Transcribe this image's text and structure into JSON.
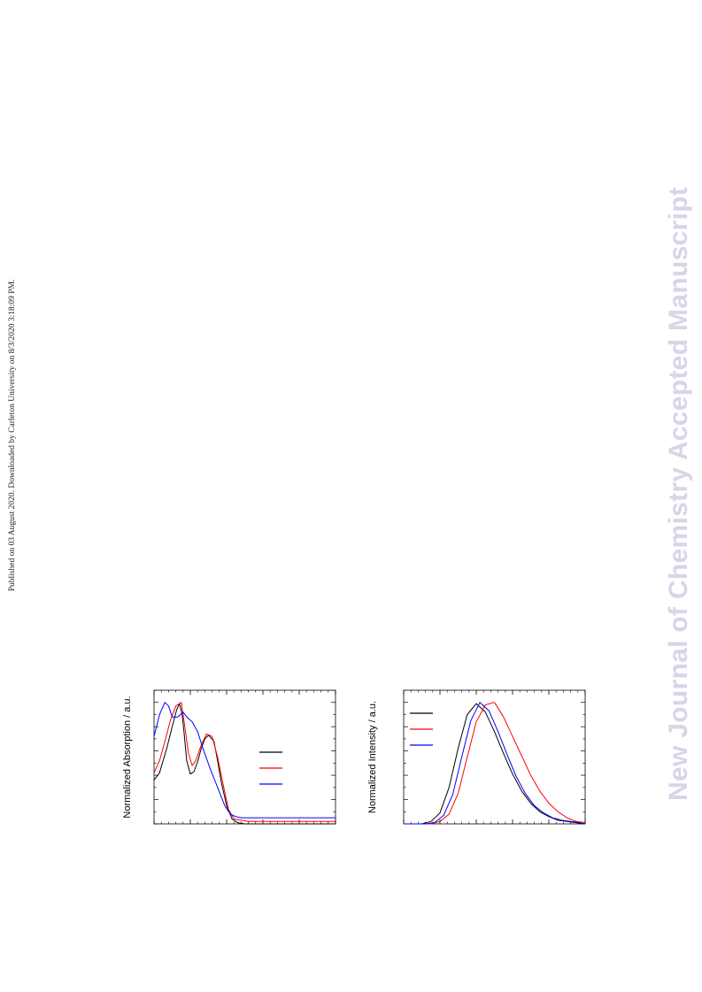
{
  "page": {
    "publication_note": "Published on 03 August 2020. Downloaded by Carleton University on 8/3/2020 3:18:09 PM.",
    "watermark": "New Journal of Chemistry Accepted Manuscript"
  },
  "chart_data": [
    {
      "type": "line",
      "title": "",
      "xlabel": "",
      "ylabel": "Normalized Absorption / a.u.",
      "xlim": [
        0,
        1
      ],
      "ylim": [
        0,
        1.1
      ],
      "grid": false,
      "legend": {
        "position": "right-center",
        "entries": [
          "",
          "",
          ""
        ]
      },
      "series": [
        {
          "color": "#000000",
          "x": [
            0,
            0.03,
            0.07,
            0.1,
            0.125,
            0.14,
            0.155,
            0.165,
            0.18,
            0.2,
            0.22,
            0.24,
            0.26,
            0.28,
            0.3,
            0.33,
            0.35,
            0.37,
            0.4,
            0.43,
            0.46,
            0.5,
            0.55,
            0.6,
            0.7,
            0.8,
            0.9,
            1.0
          ],
          "y": [
            0.36,
            0.42,
            0.62,
            0.8,
            0.94,
            0.99,
            0.9,
            0.76,
            0.52,
            0.41,
            0.43,
            0.51,
            0.62,
            0.7,
            0.73,
            0.68,
            0.52,
            0.35,
            0.15,
            0.04,
            0.01,
            0.0,
            0.0,
            0.0,
            0.0,
            0.0,
            0.0,
            0.0
          ]
        },
        {
          "color": "#ff0000",
          "x": [
            0,
            0.03,
            0.06,
            0.09,
            0.12,
            0.15,
            0.17,
            0.19,
            0.21,
            0.23,
            0.26,
            0.29,
            0.32,
            0.35,
            0.38,
            0.41,
            0.44,
            0.48,
            0.52,
            0.6,
            0.7,
            0.8,
            0.9,
            1.0
          ],
          "y": [
            0.42,
            0.52,
            0.68,
            0.85,
            0.97,
            1.0,
            0.8,
            0.58,
            0.48,
            0.52,
            0.65,
            0.74,
            0.72,
            0.55,
            0.33,
            0.12,
            0.04,
            0.03,
            0.02,
            0.02,
            0.02,
            0.02,
            0.02,
            0.02
          ]
        },
        {
          "color": "#0000ff",
          "x": [
            0,
            0.03,
            0.06,
            0.08,
            0.1,
            0.13,
            0.16,
            0.18,
            0.21,
            0.24,
            0.27,
            0.31,
            0.35,
            0.39,
            0.42,
            0.45,
            0.48,
            0.52,
            0.6,
            0.7,
            0.8,
            0.9,
            1.0
          ],
          "y": [
            0.72,
            0.9,
            1.0,
            0.97,
            0.88,
            0.88,
            0.92,
            0.88,
            0.84,
            0.76,
            0.62,
            0.45,
            0.3,
            0.15,
            0.08,
            0.06,
            0.05,
            0.05,
            0.05,
            0.05,
            0.05,
            0.05,
            0.05
          ]
        }
      ]
    },
    {
      "type": "line",
      "title": "",
      "xlabel": "",
      "ylabel": "Normalized Intensity / a.u.",
      "xlim": [
        0,
        1
      ],
      "ylim": [
        0,
        1.1
      ],
      "grid": false,
      "legend": {
        "position": "top-left",
        "entries": [
          "",
          "",
          ""
        ]
      },
      "series": [
        {
          "color": "#000000",
          "x": [
            0,
            0.1,
            0.15,
            0.2,
            0.25,
            0.3,
            0.35,
            0.4,
            0.45,
            0.5,
            0.55,
            0.6,
            0.65,
            0.7,
            0.75,
            0.8,
            0.85,
            0.9,
            0.95,
            1.0
          ],
          "y": [
            0.0,
            0.0,
            0.02,
            0.09,
            0.3,
            0.62,
            0.9,
            0.99,
            0.92,
            0.76,
            0.58,
            0.41,
            0.27,
            0.17,
            0.1,
            0.06,
            0.03,
            0.02,
            0.01,
            0.0
          ]
        },
        {
          "color": "#ff0000",
          "x": [
            0,
            0.15,
            0.2,
            0.25,
            0.3,
            0.35,
            0.4,
            0.45,
            0.5,
            0.55,
            0.6,
            0.65,
            0.7,
            0.75,
            0.8,
            0.85,
            0.9,
            0.95,
            1.0
          ],
          "y": [
            0.0,
            0.0,
            0.02,
            0.08,
            0.25,
            0.55,
            0.84,
            0.98,
            1.0,
            0.88,
            0.72,
            0.56,
            0.4,
            0.27,
            0.17,
            0.1,
            0.05,
            0.02,
            0.01
          ]
        },
        {
          "color": "#0000ff",
          "x": [
            0,
            0.12,
            0.17,
            0.22,
            0.27,
            0.32,
            0.37,
            0.42,
            0.47,
            0.52,
            0.57,
            0.62,
            0.67,
            0.72,
            0.77,
            0.82,
            0.87,
            0.92,
            0.97,
            1.0
          ],
          "y": [
            0.0,
            0.0,
            0.01,
            0.07,
            0.24,
            0.55,
            0.85,
            1.0,
            0.93,
            0.76,
            0.57,
            0.39,
            0.25,
            0.15,
            0.09,
            0.05,
            0.03,
            0.02,
            0.01,
            0.0
          ]
        }
      ]
    }
  ]
}
